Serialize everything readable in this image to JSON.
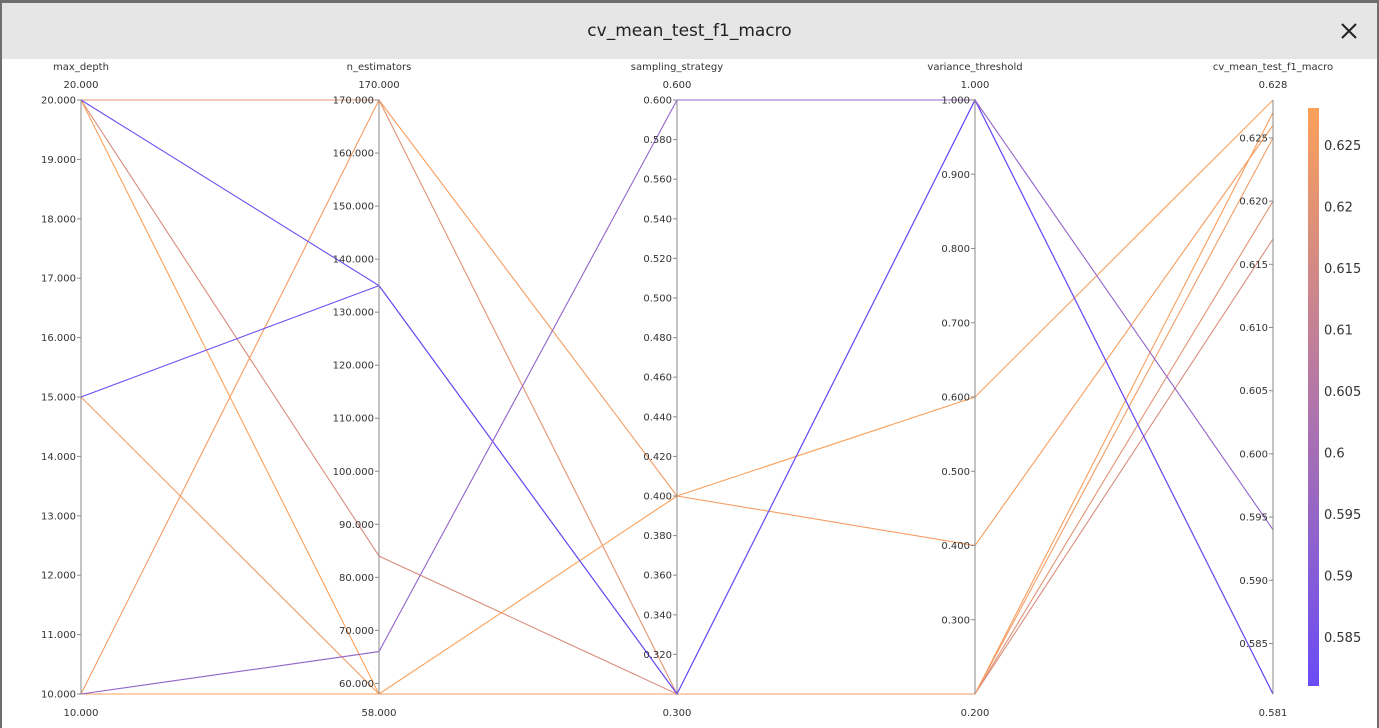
{
  "window": {
    "title": "cv_mean_test_f1_macro",
    "close_icon": "close-icon"
  },
  "chart_data": {
    "type": "parallel_coordinates",
    "title": "cv_mean_test_f1_macro",
    "axes": [
      {
        "name": "max_depth",
        "min": 10,
        "max": 20,
        "ticks": [
          "10.000",
          "11.000",
          "12.000",
          "13.000",
          "14.000",
          "15.000",
          "16.000",
          "17.000",
          "18.000",
          "19.000",
          "20.000"
        ]
      },
      {
        "name": "n_estimators",
        "min": 58,
        "max": 170,
        "ticks": [
          "60.000",
          "70.000",
          "80.000",
          "90.000",
          "100.000",
          "110.000",
          "120.000",
          "130.000",
          "140.000",
          "150.000",
          "160.000",
          "170.000"
        ]
      },
      {
        "name": "sampling_strategy",
        "min": 0.3,
        "max": 0.6,
        "ticks": [
          "0.320",
          "0.340",
          "0.360",
          "0.380",
          "0.400",
          "0.420",
          "0.440",
          "0.460",
          "0.480",
          "0.500",
          "0.520",
          "0.540",
          "0.560",
          "0.580",
          "0.600"
        ]
      },
      {
        "name": "variance_threshold",
        "min": 0.2,
        "max": 1.0,
        "ticks": [
          "0.300",
          "0.400",
          "0.500",
          "0.600",
          "0.700",
          "0.800",
          "0.900",
          "1.000"
        ]
      },
      {
        "name": "cv_mean_test_f1_macro",
        "min": 0.581,
        "max": 0.628,
        "ticks": [
          "0.585",
          "0.590",
          "0.595",
          "0.600",
          "0.605",
          "0.610",
          "0.615",
          "0.620",
          "0.625"
        ]
      }
    ],
    "axis_min_labels": [
      "10.000",
      "58.000",
      "0.300",
      "0.200",
      "0.581"
    ],
    "axis_max_labels": [
      "20.000",
      "170.000",
      "0.600",
      "1.000",
      "0.628"
    ],
    "lines": [
      [
        20,
        170,
        0.3,
        0.2,
        0.62
      ],
      [
        20,
        84,
        0.3,
        0.2,
        0.617
      ],
      [
        20,
        58,
        0.4,
        0.6,
        0.628
      ],
      [
        10,
        58,
        0.3,
        0.2,
        0.627
      ],
      [
        15,
        58,
        0.3,
        0.2,
        0.625
      ],
      [
        10,
        170,
        0.4,
        0.4,
        0.626
      ],
      [
        20,
        135,
        0.3,
        1.0,
        0.581
      ],
      [
        15,
        135,
        0.3,
        1.0,
        0.581
      ],
      [
        10,
        66,
        0.6,
        1.0,
        0.594
      ]
    ],
    "colorbar": {
      "min": 0.581,
      "max": 0.628,
      "ticks": [
        "0.585",
        "0.59",
        "0.595",
        "0.6",
        "0.605",
        "0.61",
        "0.615",
        "0.62",
        "0.625"
      ],
      "low_color": "#6a4cf5",
      "high_color": "#fba15a"
    }
  }
}
